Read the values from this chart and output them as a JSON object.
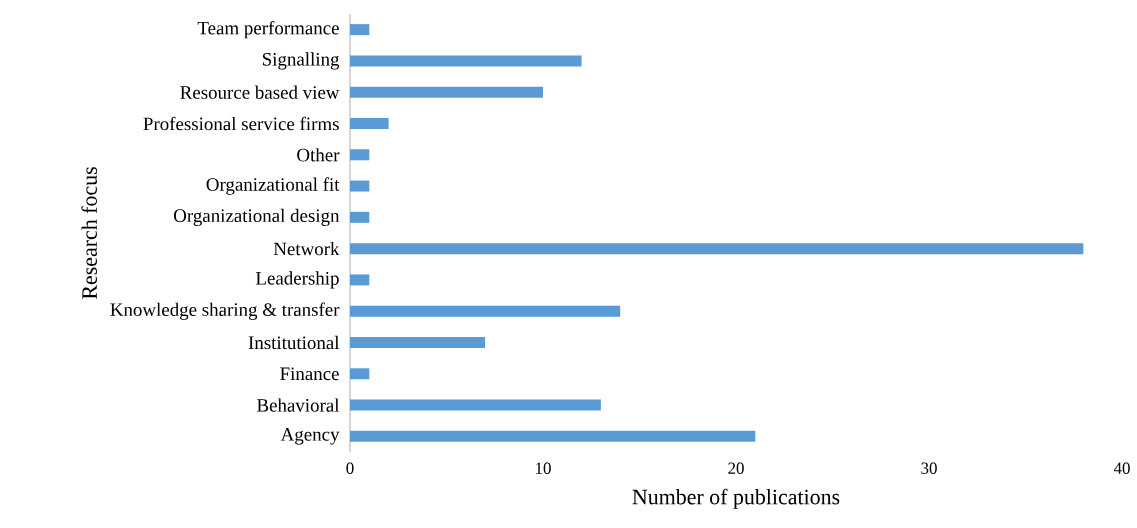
{
  "chart_data": {
    "type": "bar",
    "orientation": "horizontal",
    "xlabel": "Number of publications",
    "ylabel": "Research focus",
    "categories": [
      "Team performance",
      "Signalling",
      "Resource based view",
      "Professional service firms",
      "Other",
      "Organizational fit",
      "Organizational design",
      "Network",
      "Leadership",
      "Knowledge sharing & transfer",
      "Institutional",
      "Finance",
      "Behavioral",
      "Agency"
    ],
    "values": [
      1,
      12,
      10,
      2,
      1,
      1,
      1,
      38,
      1,
      14,
      7,
      1,
      13,
      21
    ],
    "color": "#5b9bd5",
    "xlim": [
      0,
      40
    ],
    "xticks": [
      0,
      10,
      20,
      30,
      40
    ],
    "grid": false
  }
}
